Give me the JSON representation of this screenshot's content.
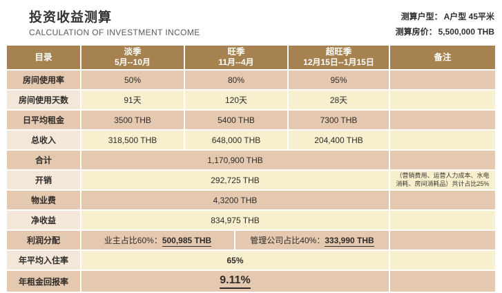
{
  "header": {
    "title": "投资收益测算",
    "subtitle": "CALCULATION OF INVESTMENT INCOME",
    "unit_label": "测算户型：",
    "unit_value": "A户型   45平米",
    "price_label": "测算房价：",
    "price_value": "5,500,000 THB"
  },
  "table": {
    "columns": [
      {
        "title": "目录",
        "sub": ""
      },
      {
        "title": "淡季",
        "sub": "5月--10月"
      },
      {
        "title": "旺季",
        "sub": "11月--4月"
      },
      {
        "title": "超旺季",
        "sub": "12月15日--1月15日"
      },
      {
        "title": "备注",
        "sub": ""
      }
    ],
    "rows": {
      "occupancy_rate": {
        "label": "房间使用率",
        "values": [
          "50%",
          "80%",
          "95%"
        ],
        "remark": ""
      },
      "occupancy_days": {
        "label": "房间使用天数",
        "values": [
          "91天",
          "120天",
          "28天"
        ],
        "remark": ""
      },
      "daily_rent": {
        "label": "日平均租金",
        "values": [
          "3500 THB",
          "5400 THB",
          "7300 THB"
        ],
        "remark": ""
      },
      "total_income": {
        "label": "总收入",
        "values": [
          "318,500 THB",
          "648,000 THB",
          "204,400 THB"
        ],
        "remark": ""
      },
      "sum_total": {
        "label": "合计",
        "value": "1,170,900 THB",
        "remark": ""
      },
      "expenses": {
        "label": "开销",
        "value": "292,725 THB",
        "remark": "（营销费用、运营人力成本、水电消耗、房间消耗品）共计占比25%"
      },
      "property_fee": {
        "label": "物业费",
        "value": "4,3200 THB",
        "remark": ""
      },
      "net_income": {
        "label": "净收益",
        "value": "834,975 THB",
        "remark": ""
      },
      "profit_split": {
        "label": "利润分配",
        "owner_label": "业主占比60%：",
        "owner_value": "500,985 THB",
        "company_label": "管理公司占比40%：",
        "company_value": "333,990 THB",
        "remark": ""
      },
      "avg_occupancy": {
        "label": "年平均入住率",
        "value": "65%",
        "remark": ""
      },
      "annual_return": {
        "label": "年租金回报率",
        "value": "9.11%",
        "remark": ""
      }
    }
  },
  "colors": {
    "header_bg": "#a5824f",
    "row_dark": "#e5c8b0",
    "row_light": "#f7efcd",
    "label_light": "#f4e7d9",
    "text": "#2e2b28"
  }
}
